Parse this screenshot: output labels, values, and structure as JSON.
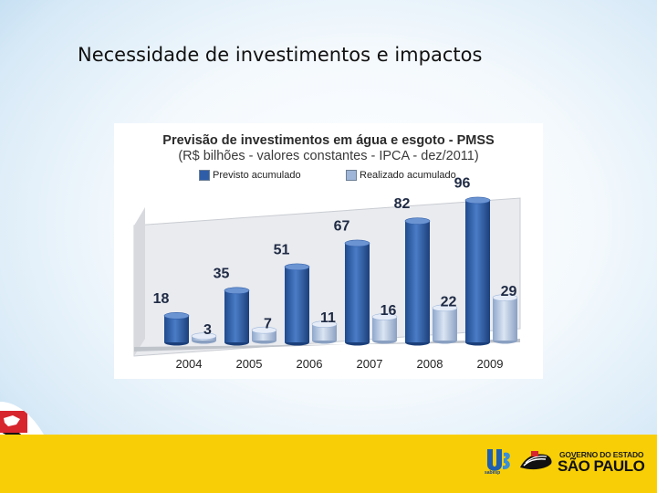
{
  "slide": {
    "title": "Necessidade de investimentos e impactos"
  },
  "chart_data": {
    "type": "bar",
    "title": "Previsão de investimentos em água e esgoto - PMSS",
    "subtitle": "(R$ bilhões - valores constantes - IPCA - dez/2011)",
    "categories": [
      "2004",
      "2005",
      "2006",
      "2007",
      "2008",
      "2009"
    ],
    "series": [
      {
        "name": "Previsto acumulado",
        "values": [
          18,
          35,
          51,
          67,
          82,
          96
        ],
        "color": "#2f5da8"
      },
      {
        "name": "Realizado acumulado",
        "values": [
          3,
          7,
          11,
          16,
          22,
          29
        ],
        "color": "#9fb6d8"
      }
    ],
    "ylim": [
      0,
      100
    ],
    "grid": false,
    "legend_position": "top",
    "data_labels": true,
    "style": "3d-cylinder"
  },
  "footer": {
    "sabesp_logo_text": "sabesp",
    "gov_line1": "GOVERNO DO ESTADO",
    "gov_line2": "SÃO PAULO",
    "band_color": "#f8cf06"
  }
}
